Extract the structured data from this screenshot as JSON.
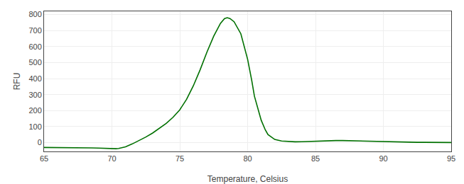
{
  "chart_data": {
    "type": "line",
    "xlabel": "Temperature, Celsius",
    "ylabel": "RFU",
    "x": [
      65.0,
      65.5,
      66.0,
      66.5,
      67.0,
      67.5,
      68.0,
      68.5,
      69.0,
      69.5,
      70.0,
      70.3,
      70.5,
      71.0,
      71.5,
      72.0,
      72.5,
      73.0,
      73.5,
      74.0,
      74.5,
      75.0,
      75.5,
      76.0,
      76.5,
      77.0,
      77.5,
      78.0,
      78.3,
      78.5,
      78.7,
      79.0,
      79.5,
      80.0,
      80.3,
      80.5,
      81.0,
      81.3,
      81.5,
      82.0,
      82.5,
      83.0,
      83.5,
      84.0,
      84.5,
      85.0,
      85.5,
      86.0,
      86.5,
      87.0,
      87.5,
      88.0,
      88.5,
      89.0,
      89.5,
      90.0,
      90.5,
      91.0,
      91.5,
      92.0,
      92.5,
      93.0,
      93.5,
      94.0,
      94.5,
      95.0
    ],
    "values": [
      -30,
      -30,
      -31,
      -31,
      -32,
      -32,
      -33,
      -33,
      -34,
      -36,
      -38,
      -38,
      -36,
      -26,
      -8,
      12,
      35,
      60,
      88,
      120,
      158,
      205,
      270,
      355,
      455,
      565,
      665,
      745,
      775,
      780,
      775,
      755,
      680,
      520,
      390,
      290,
      140,
      80,
      50,
      20,
      10,
      6,
      5,
      6,
      8,
      10,
      12,
      13,
      13,
      13,
      12,
      11,
      10,
      9,
      7,
      5,
      3,
      2,
      2,
      2,
      2,
      2,
      1,
      1,
      1,
      1
    ],
    "color": "#007000",
    "xlim": [
      65,
      95
    ],
    "ylim": [
      -55,
      820
    ],
    "xticks": [
      65,
      70,
      75,
      80,
      85,
      90,
      95
    ],
    "yticks": [
      0,
      100,
      200,
      300,
      400,
      500,
      600,
      700,
      800
    ],
    "grid": true
  }
}
